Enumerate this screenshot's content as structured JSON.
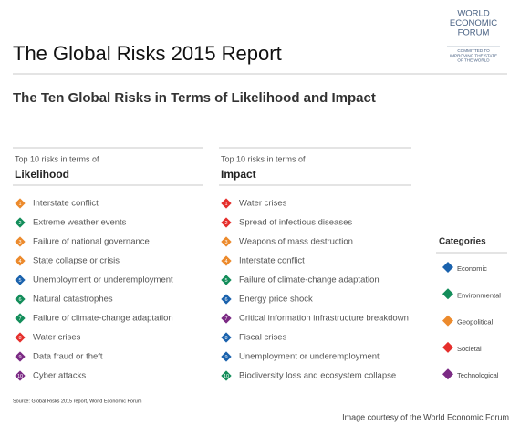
{
  "logo": {
    "name": [
      "WORLD",
      "ECONOMIC",
      "FORUM"
    ],
    "tagline": [
      "COMMITTED TO",
      "IMPROVING THE STATE",
      "OF THE WORLD"
    ]
  },
  "header": {
    "title": "The Global Risks 2015 Report",
    "subtitle": "The Ten Global Risks in Terms of Likelihood and Impact"
  },
  "columns": [
    {
      "intro": "Top 10 risks in terms of",
      "heading": "Likelihood",
      "items": [
        {
          "rank": 1,
          "label": "Interstate conflict",
          "category": "Geopolitical"
        },
        {
          "rank": 2,
          "label": "Extreme weather events",
          "category": "Environmental"
        },
        {
          "rank": 3,
          "label": "Failure of national governance",
          "category": "Geopolitical"
        },
        {
          "rank": 4,
          "label": "State collapse or crisis",
          "category": "Geopolitical"
        },
        {
          "rank": 5,
          "label": "Unemployment or underemployment",
          "category": "Economic"
        },
        {
          "rank": 6,
          "label": "Natural catastrophes",
          "category": "Environmental"
        },
        {
          "rank": 7,
          "label": "Failure of climate-change adaptation",
          "category": "Environmental"
        },
        {
          "rank": 8,
          "label": "Water crises",
          "category": "Societal"
        },
        {
          "rank": 9,
          "label": "Data fraud or theft",
          "category": "Technological"
        },
        {
          "rank": 10,
          "label": "Cyber attacks",
          "category": "Technological"
        }
      ]
    },
    {
      "intro": "Top 10 risks in terms of",
      "heading": "Impact",
      "items": [
        {
          "rank": 1,
          "label": "Water crises",
          "category": "Societal"
        },
        {
          "rank": 2,
          "label": "Spread of infectious diseases",
          "category": "Societal"
        },
        {
          "rank": 3,
          "label": "Weapons of mass destruction",
          "category": "Geopolitical"
        },
        {
          "rank": 4,
          "label": "Interstate conflict",
          "category": "Geopolitical"
        },
        {
          "rank": 5,
          "label": "Failure of climate-change adaptation",
          "category": "Environmental"
        },
        {
          "rank": 6,
          "label": "Energy price shock",
          "category": "Economic"
        },
        {
          "rank": 7,
          "label": "Critical information infrastructure breakdown",
          "category": "Technological"
        },
        {
          "rank": 8,
          "label": "Fiscal crises",
          "category": "Economic"
        },
        {
          "rank": 9,
          "label": "Unemployment or underemployment",
          "category": "Economic"
        },
        {
          "rank": 10,
          "label": "Biodiversity loss and ecosystem collapse",
          "category": "Environmental"
        }
      ]
    }
  ],
  "legend": {
    "title": "Categories",
    "categories": [
      {
        "name": "Economic",
        "color": "#1a62ad"
      },
      {
        "name": "Environmental",
        "color": "#138d5a"
      },
      {
        "name": "Geopolitical",
        "color": "#ec8a2c"
      },
      {
        "name": "Societal",
        "color": "#e52f2c"
      },
      {
        "name": "Technological",
        "color": "#7b2a84"
      }
    ]
  },
  "footer": {
    "source": "Source: Global Risks 2015 report, World Economic Forum",
    "credit": "Image courtesy of the World Economic Forum"
  }
}
